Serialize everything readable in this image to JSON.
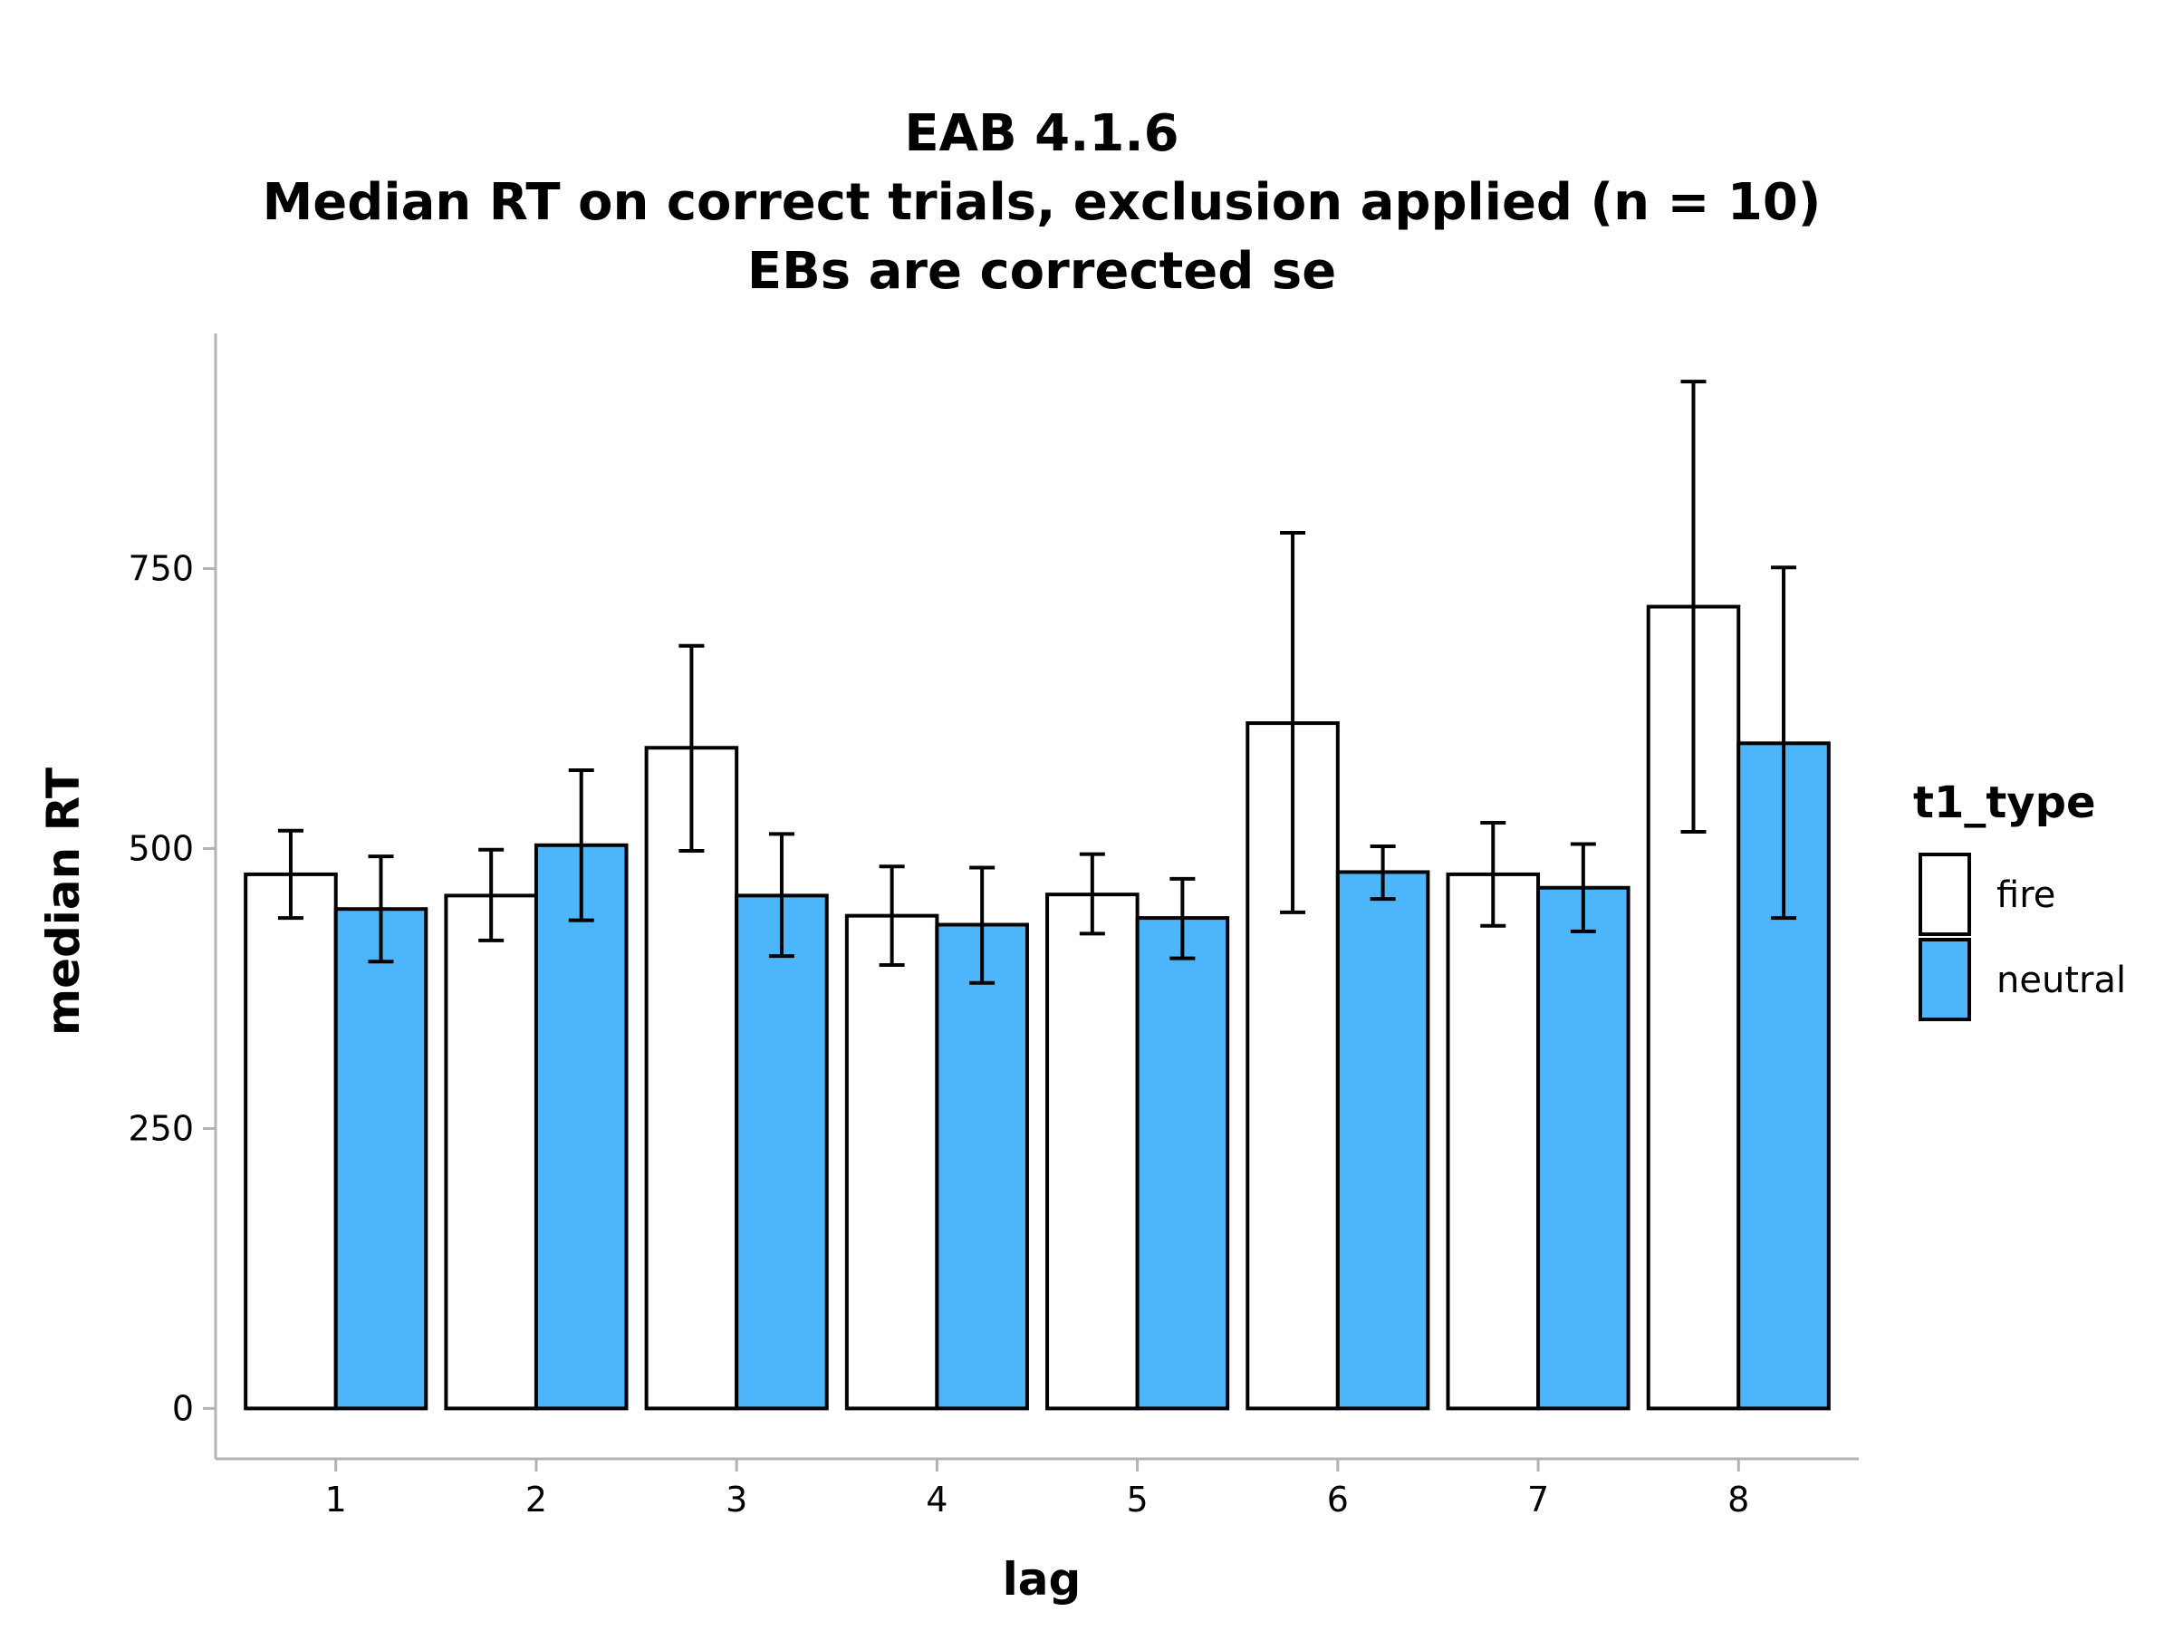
{
  "title_lines": [
    "EAB 4.1.6",
    "Median RT on correct trials, exclusion applied (n = 10)",
    "EBs are corrected se"
  ],
  "colors": {
    "fire": "#ffffff",
    "neutral": "#4db6fa",
    "bar_stroke": "#000000",
    "axis": "#b3b3b3"
  },
  "legend": {
    "title": "t1_type",
    "items": [
      "fire",
      "neutral"
    ]
  },
  "chart_data": {
    "type": "bar",
    "title": "EAB 4.1.6 Median RT on correct trials, exclusion applied (n = 10) EBs are corrected se",
    "xlabel": "lag",
    "ylabel": "median RT",
    "categories": [
      "1",
      "2",
      "3",
      "4",
      "5",
      "6",
      "7",
      "8"
    ],
    "yticks": [
      0,
      250,
      500,
      750
    ],
    "ylim": [
      -45,
      960
    ],
    "grid": false,
    "legend_position": "right",
    "series": [
      {
        "name": "fire",
        "values": [
          477,
          458,
          590,
          440,
          459,
          612,
          477,
          716
        ],
        "err_low": [
          438,
          418,
          498,
          396,
          424,
          443,
          431,
          515
        ],
        "err_high": [
          516,
          499,
          681,
          484,
          495,
          782,
          523,
          917
        ]
      },
      {
        "name": "neutral",
        "values": [
          446,
          503,
          458,
          432,
          438,
          479,
          465,
          594
        ],
        "err_low": [
          399,
          436,
          404,
          380,
          402,
          455,
          426,
          438
        ],
        "err_high": [
          493,
          570,
          513,
          483,
          473,
          502,
          504,
          751
        ]
      }
    ]
  }
}
